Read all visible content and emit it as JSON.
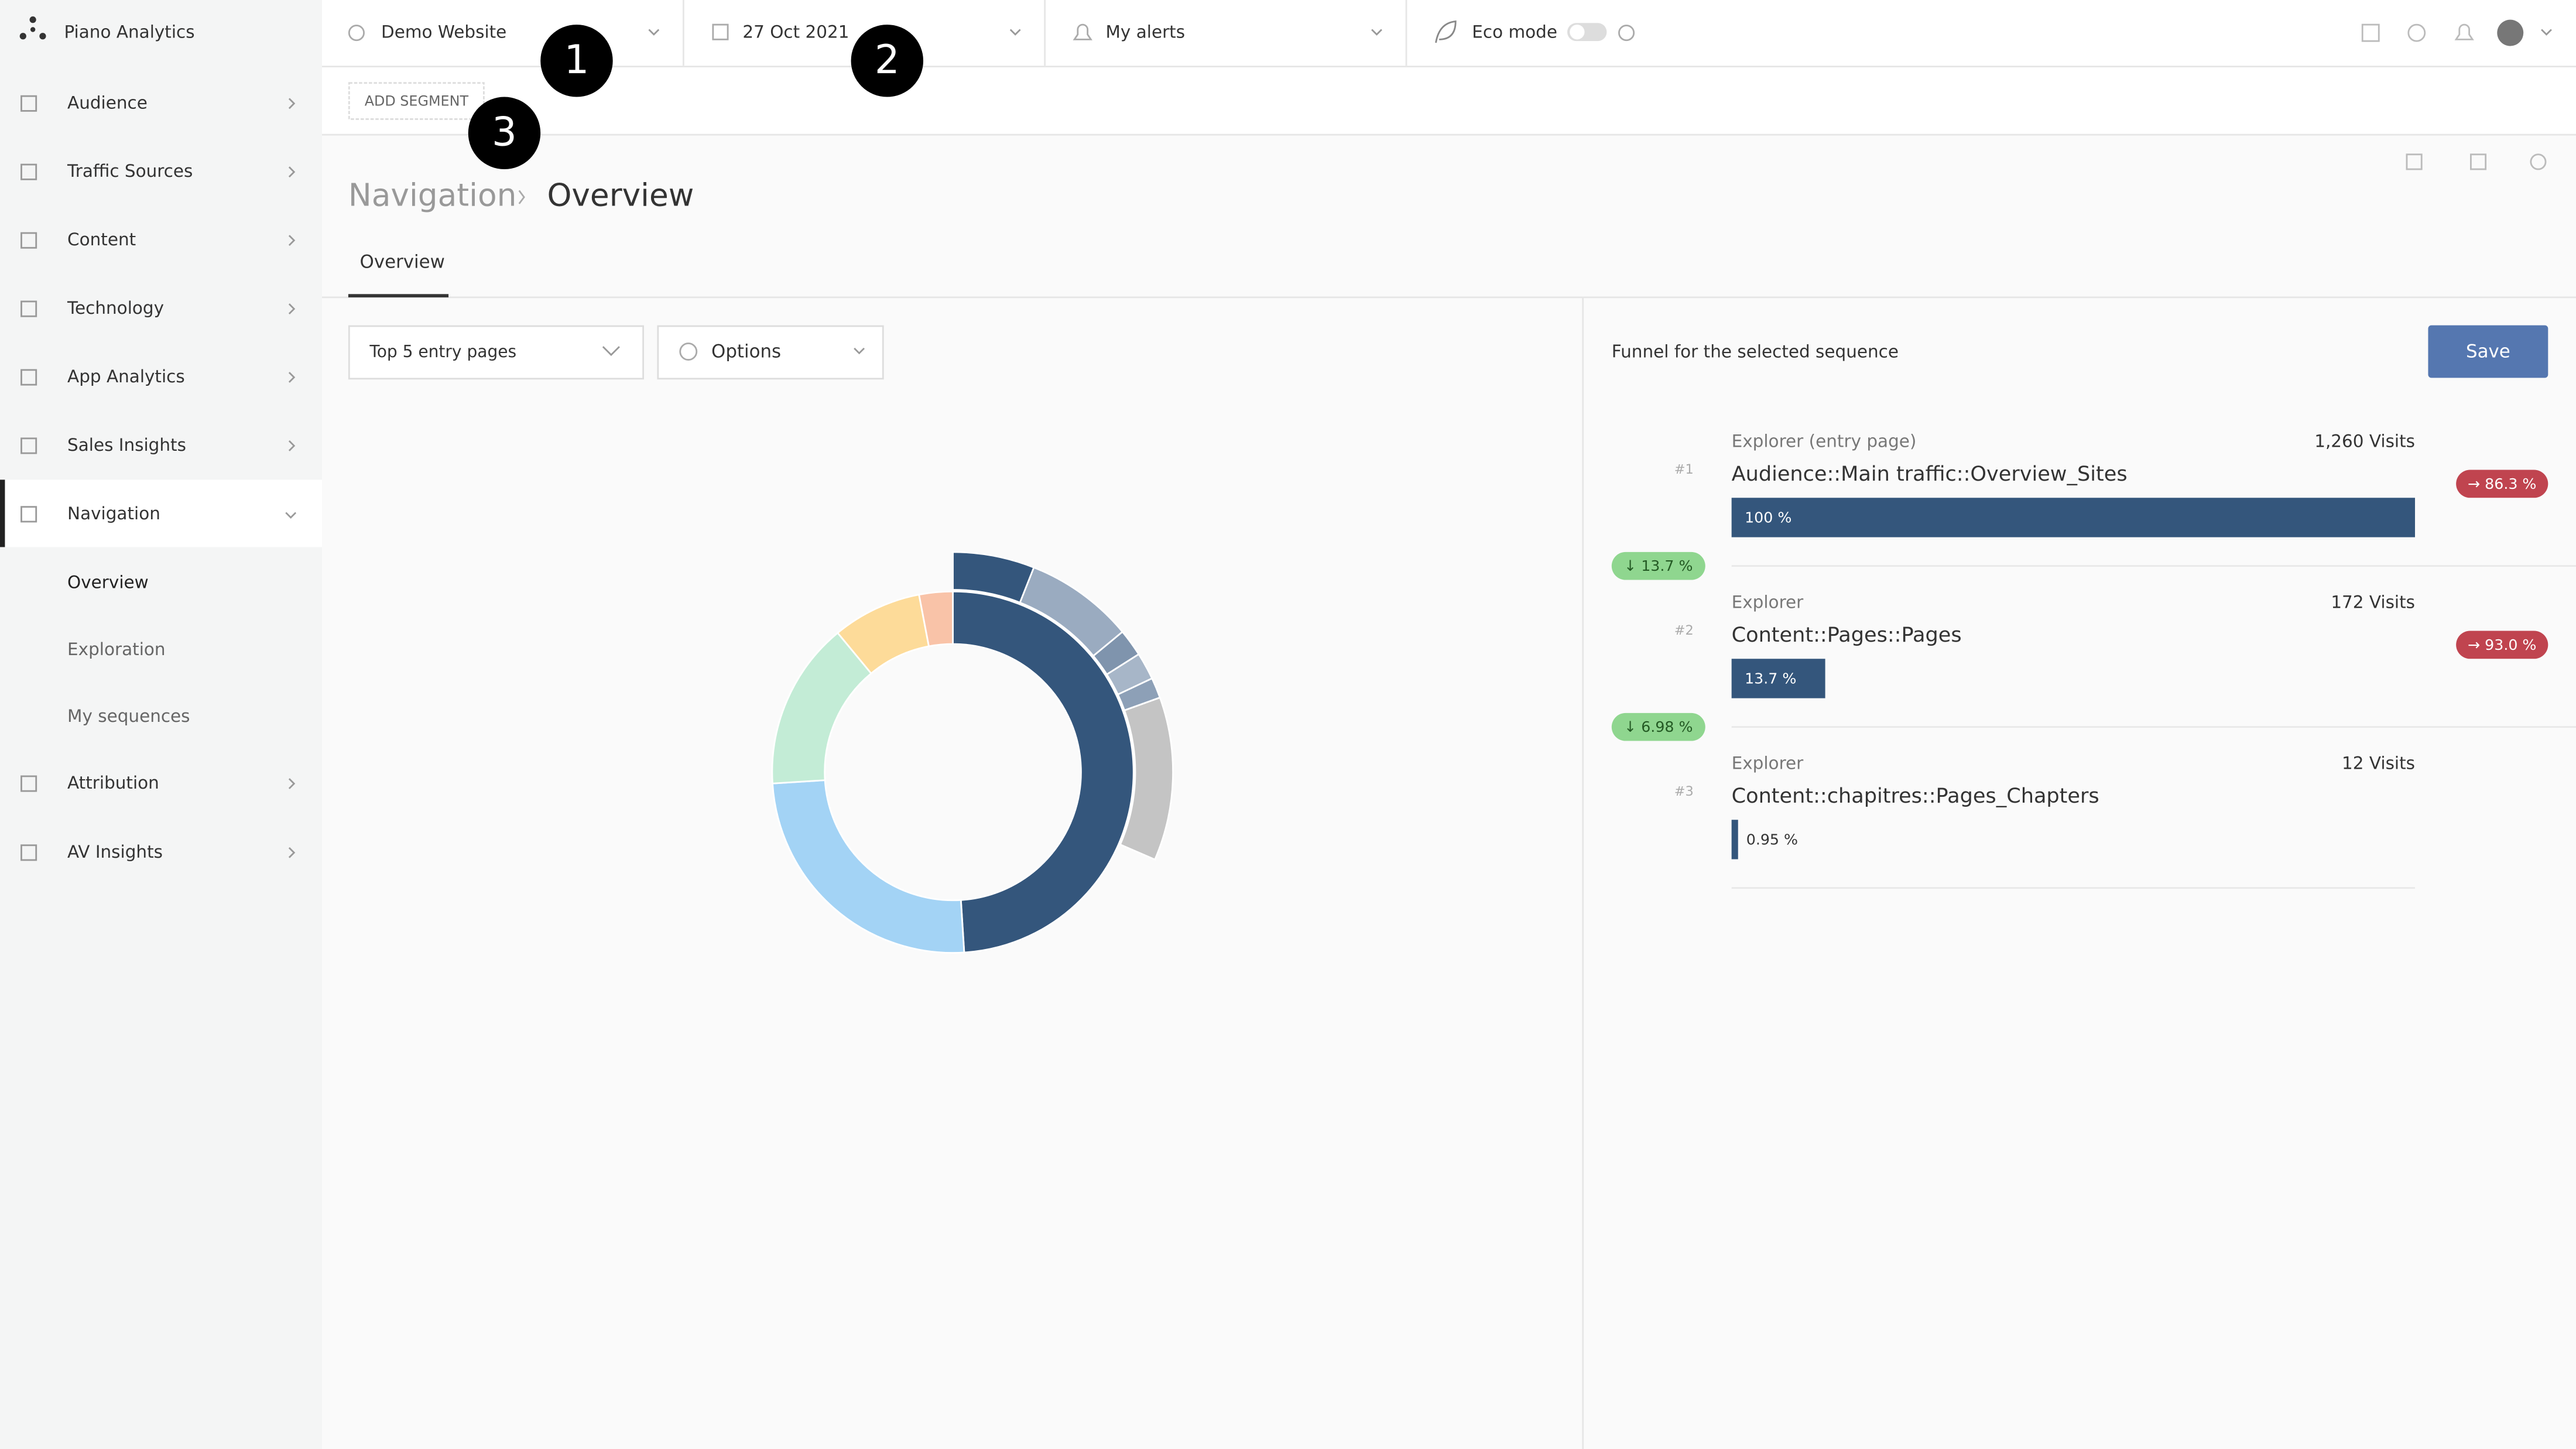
{
  "app": {
    "name": "Piano Analytics"
  },
  "sidebar": {
    "items": [
      "Audience",
      "Traffic Sources",
      "Content",
      "Technology",
      "App Analytics",
      "Sales Insights",
      "Navigation"
    ],
    "subitems": [
      "Overview",
      "Exploration",
      "My sequences"
    ],
    "items_after": [
      "Attribution",
      "AV Insights"
    ]
  },
  "topbar": {
    "site": "Demo Website",
    "date": "27 Oct 2021",
    "alerts": "My alerts",
    "eco": "Eco mode"
  },
  "segment_button": "ADD SEGMENT",
  "callouts": [
    "1",
    "2",
    "3"
  ],
  "breadcrumb": [
    "Navigation",
    "Overview"
  ],
  "tab": "Overview",
  "controls": {
    "entry": "Top 5 entry pages",
    "options": "Options"
  },
  "chart": {
    "type": "sunburst",
    "inner": {
      "values": [
        49,
        25,
        15,
        8,
        3
      ],
      "colors": [
        "#34567c",
        "#a3d3f5",
        "#c3ecd6",
        "#fddb99",
        "#f9c3a8"
      ]
    },
    "outer": {
      "values": [
        6,
        8,
        2,
        2,
        1.5,
        12
      ],
      "colors": [
        "#34567c",
        "#9aabc0",
        "#7f94ad",
        "#a7b6c8",
        "#8da0b7",
        "#c4c4c4"
      ]
    }
  },
  "funnel": {
    "title": "Funnel for the selected sequence",
    "save": "Save",
    "values": [
      100,
      13.7,
      0.95
    ],
    "value_labels": [
      "100 %",
      "13.7 %",
      "0.95 %"
    ],
    "steps": [
      {
        "rank": "#1",
        "label": "Explorer (entry page)",
        "page": "Audience::Main traffic::Overview_Sites",
        "visits": "1,260 Visits",
        "exit": "→ 86.3 %",
        "drop": "↓ 13.7 %"
      },
      {
        "rank": "#2",
        "label": "Explorer",
        "page": "Content::Pages::Pages",
        "visits": "172 Visits",
        "exit": "→ 93.0 %",
        "drop": "↓ 6.98 %"
      },
      {
        "rank": "#3",
        "label": "Explorer",
        "page": "Content::chapitres::Pages_Chapters",
        "visits": "12 Visits"
      }
    ]
  }
}
